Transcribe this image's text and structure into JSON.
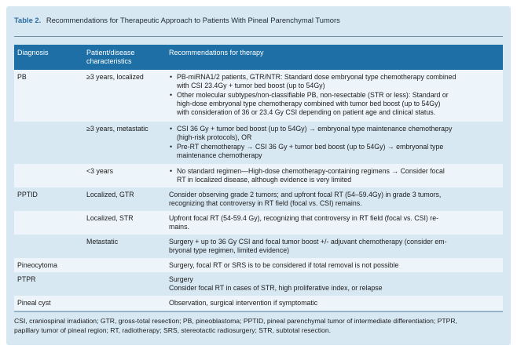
{
  "caption": {
    "label": "Table 2.",
    "title": "Recommendations for Therapeutic Approach to Patients With Pineal Parenchymal Tumors"
  },
  "header": {
    "diagnosis": "Diagnosis",
    "patient_line1": "Patient/disease",
    "patient_line2": "characteristics",
    "recommendations": "Recommendations for therapy"
  },
  "rows": [
    {
      "diagnosis": "PB",
      "characteristics": "≥3 years, localized",
      "bullets": [
        [
          "PB-miRNA1/2 patients, GTR/NTR: Standard dose embryonal type chemotherapy combined",
          "with CSI 23.4Gy + tumor bed boost (up to 54Gy)"
        ],
        [
          "Other molecular subtypes/non-classifiable PB, non-resectable (STR or less): Standard or",
          "high-dose embryonal type chemotherapy combined with tumor bed boost (up to 54Gy)",
          "with consideration of 36 or 23.4 Gy CSI depending on patient age and clinical status."
        ]
      ]
    },
    {
      "diagnosis": "",
      "characteristics": "≥3 years, metastatic",
      "bullets": [
        [
          "CSI 36 Gy + tumor bed boost (up to 54Gy) → embryonal type maintenance chemotherapy",
          "(high-risk protocols), OR"
        ],
        [
          "Pre-RT chemotherapy → CSI 36 Gy + tumor bed boost (up to 54Gy) → embryonal type",
          "maintenance chemotherapy"
        ]
      ]
    },
    {
      "diagnosis": "",
      "characteristics": "<3 years",
      "bullets": [
        [
          "No standard regimen—High-dose chemotherapy-containing regimens → Consider focal",
          "RT in localized disease, although evidence is very limited"
        ]
      ]
    },
    {
      "diagnosis": "PPTID",
      "characteristics": "Localized, GTR",
      "lines": [
        "Consider observing grade 2 tumors; and upfront focal RT (54–59.4Gy) in grade 3 tumors,",
        "recognizing that controversy in RT field (focal vs. CSI) remains."
      ]
    },
    {
      "diagnosis": "",
      "characteristics": "Localized, STR",
      "lines": [
        "Upfront focal RT (54-59.4 Gy), recognizing that controversy in RT field (focal vs. CSI) re-",
        "mains."
      ]
    },
    {
      "diagnosis": "",
      "characteristics": "Metastatic",
      "lines": [
        "Surgery + up to 36 Gy CSI and focal tumor boost +/- adjuvant chemotherapy (consider em-",
        "bryonal type regimen, limited evidence)"
      ]
    },
    {
      "diagnosis": "Pineocytoma",
      "characteristics": "",
      "lines": [
        "Surgery, focal RT or SRS is to be considered if total removal is not possible"
      ]
    },
    {
      "diagnosis": "PTPR",
      "characteristics": "",
      "lines": [
        "Surgery",
        "Consider focal RT in cases of STR, high proliferative index, or relapse"
      ]
    },
    {
      "diagnosis": "Pineal cyst",
      "characteristics": "",
      "lines": [
        "Observation, surgical intervention if symptomatic"
      ]
    }
  ],
  "footnote": {
    "line1": "CSI, craniospinal irradiation; GTR, gross-total resection; PB, pineoblastoma; PPTID, pineal parenchymal tumor of intermediate differentiation; PTPR,",
    "line2": "papillary tumor of pineal region; RT, radiotherapy; SRS, stereotactic radiosurgery; STR, subtotal resection."
  }
}
